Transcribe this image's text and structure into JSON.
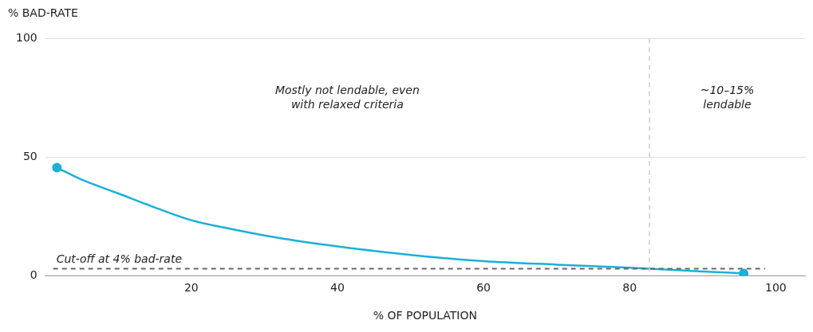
{
  "chart_data": {
    "type": "line",
    "xlabel": "% OF POPULATION",
    "ylabel": "% BAD-RATE",
    "xlim": [
      0,
      104
    ],
    "xticks": [
      20,
      40,
      60,
      80,
      100
    ],
    "ylim": [
      0,
      100
    ],
    "yticks": [
      0,
      50,
      100
    ],
    "grid": "y",
    "legend": false,
    "series": [
      {
        "color": "#1ab0d8",
        "x": [
          1.6,
          5,
          10,
          15,
          20,
          25,
          30,
          35,
          40,
          50,
          60,
          70,
          80,
          90,
          95.6
        ],
        "values": [
          45.6,
          40.5,
          34.7,
          28.8,
          23.4,
          20,
          17,
          14.5,
          12.4,
          8.8,
          6.2,
          4.7,
          3.4,
          1.8,
          1
        ]
      },
      {
        "type": "scatter",
        "color": "#1ab0d8",
        "marker": "circle",
        "x": [
          1.6,
          95.6
        ],
        "values": [
          45.6,
          1
        ]
      }
    ],
    "ref_lines": [
      {
        "axis": "y",
        "value": 3,
        "label": "Cut-off at 4% bad-rate",
        "color": "#666666",
        "line_style": "dashed"
      },
      {
        "axis": "x",
        "value": 82.7,
        "color": "#cccccc",
        "line_style": "dashed"
      }
    ],
    "annotations": [
      "Mostly not lendable, even with relaxed criteria",
      "~10–15% lendable"
    ]
  }
}
